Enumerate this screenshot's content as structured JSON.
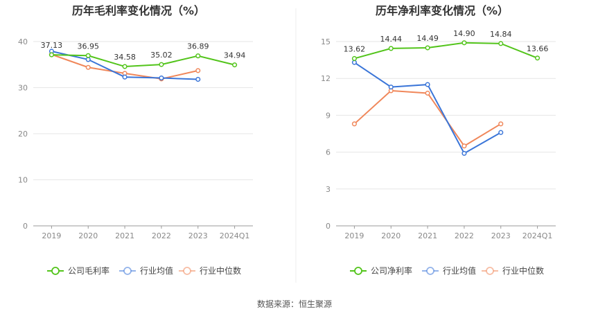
{
  "source": "数据来源：恒生聚源",
  "chart_data": [
    {
      "type": "line",
      "title": "历年毛利率变化情况（%）",
      "categories": [
        "2019",
        "2020",
        "2021",
        "2022",
        "2023",
        "2024Q1"
      ],
      "ylim": [
        0,
        40
      ],
      "yticks": [
        0,
        10,
        20,
        30,
        40
      ],
      "grid": true,
      "legend": "bottom",
      "series": [
        {
          "name": "公司毛利率",
          "color": "#52c41a",
          "values": [
            37.13,
            36.95,
            34.58,
            35.02,
            36.89,
            34.94
          ],
          "labels": [
            "37.13",
            "36.95",
            "34.58",
            "35.02",
            "36.89",
            "34.94"
          ]
        },
        {
          "name": "行业均值",
          "color": "#3a75d8",
          "values": [
            37.9,
            36.1,
            32.3,
            32.1,
            31.8,
            null
          ]
        },
        {
          "name": "行业中位数",
          "color": "#f0875a",
          "values": [
            37.2,
            34.4,
            33.1,
            31.9,
            33.7,
            null
          ]
        }
      ]
    },
    {
      "type": "line",
      "title": "历年净利率变化情况（%）",
      "categories": [
        "2019",
        "2020",
        "2021",
        "2022",
        "2023",
        "2024Q1"
      ],
      "ylim": [
        0,
        15
      ],
      "yticks": [
        0,
        3,
        6,
        9,
        12,
        15
      ],
      "grid": true,
      "legend": "bottom",
      "series": [
        {
          "name": "公司净利率",
          "color": "#52c41a",
          "values": [
            13.62,
            14.44,
            14.49,
            14.9,
            14.84,
            13.66
          ],
          "labels": [
            "13.62",
            "14.44",
            "14.49",
            "14.90",
            "14.84",
            "13.66"
          ]
        },
        {
          "name": "行业均值",
          "color": "#3a75d8",
          "values": [
            13.3,
            11.3,
            11.5,
            5.9,
            7.6,
            null
          ]
        },
        {
          "name": "行业中位数",
          "color": "#f0875a",
          "values": [
            8.3,
            11.0,
            10.8,
            6.5,
            8.3,
            null
          ]
        }
      ]
    }
  ]
}
